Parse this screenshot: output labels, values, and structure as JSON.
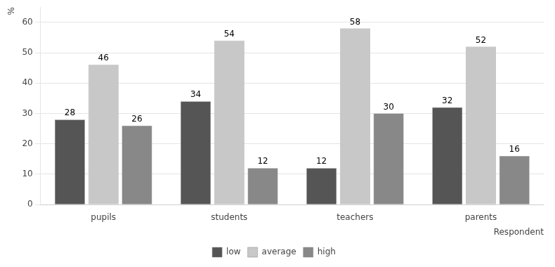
{
  "chart_data": {
    "type": "bar",
    "categories": [
      "pupils",
      "students",
      "teachers",
      "parents"
    ],
    "series": [
      {
        "name": "low",
        "color": "#555555",
        "values": [
          28,
          34,
          12,
          32
        ]
      },
      {
        "name": "average",
        "color": "#c8c8c8",
        "values": [
          46,
          54,
          58,
          52
        ]
      },
      {
        "name": "high",
        "color": "#888888",
        "values": [
          26,
          12,
          30,
          16
        ]
      }
    ],
    "ylabel": "%",
    "xlabel": "Respondent",
    "ylim": [
      0,
      65
    ],
    "yticks": [
      0,
      10,
      20,
      30,
      40,
      50,
      60
    ],
    "grid": true,
    "legend": "bottom",
    "data_labels": true
  }
}
